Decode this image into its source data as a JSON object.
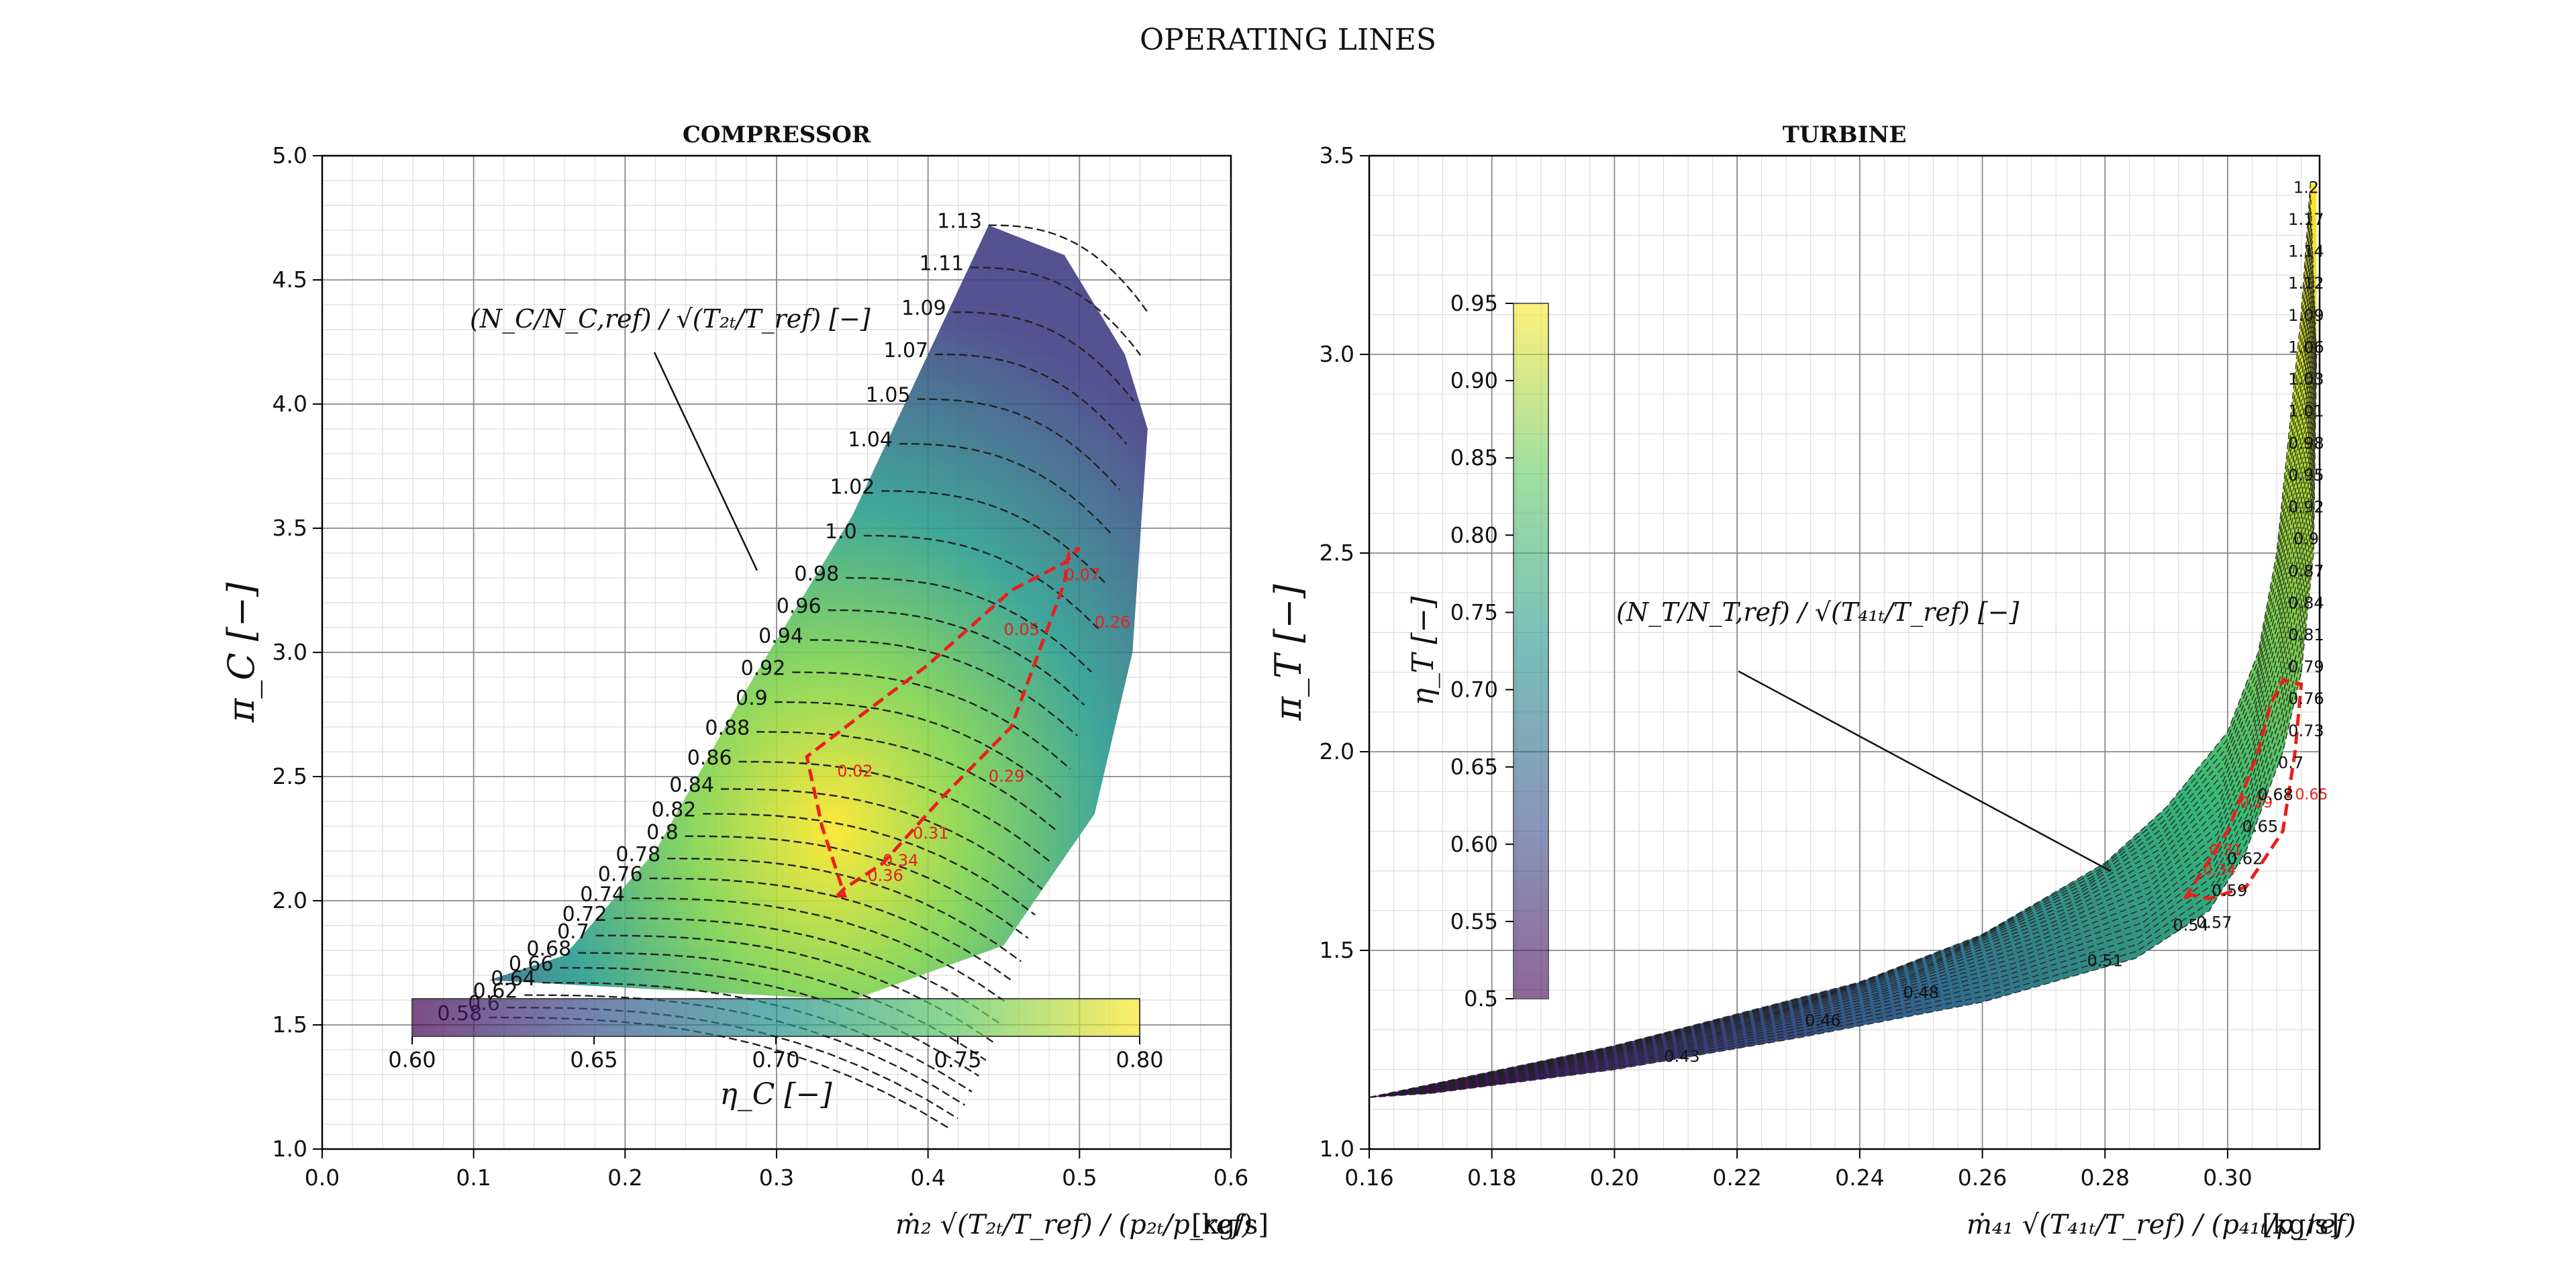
{
  "figure": {
    "title": "OPERATING LINES"
  },
  "colors": {
    "operating_line": "#e8201a",
    "speedline": "#222222",
    "grid_major": "#8a8a8a",
    "grid_minor": "#dcdcdc",
    "viridis": [
      "#440154",
      "#3b528b",
      "#21918c",
      "#5ec962",
      "#fde725"
    ]
  },
  "compressor": {
    "title": "COMPRESSOR",
    "xlabel": "ṁ₂ √(T₂ₜ/T_ref) / (p₂ₜ/p_ref)",
    "x_unit": "[kg/s]",
    "ylabel": "π_C [−]",
    "speed_annotation": "(N_C/N_C,ref) / √(T₂ₜ/T_ref) [−]",
    "colorbar_label": "η_C [−]",
    "colorbar_orientation": "horizontal",
    "colorbar_range": [
      0.6,
      0.8
    ],
    "colorbar_ticks": [
      "0.60",
      "0.65",
      "0.70",
      "0.75",
      "0.80"
    ]
  },
  "turbine": {
    "title": "TURBINE",
    "xlabel": "ṁ₄₁ √(T₄₁ₜ/T_ref) / (p₄₁ₜ/p_ref)",
    "x_unit": "[kg/s]",
    "ylabel": "π_T [−]",
    "speed_annotation": "(N_T/N_T,ref) / √(T₄₁ₜ/T_ref) [−]",
    "colorbar_label": "η_T [−]",
    "colorbar_orientation": "vertical",
    "colorbar_range": [
      0.5,
      0.95
    ],
    "colorbar_ticks": [
      "0.5",
      "0.55",
      "0.60",
      "0.65",
      "0.70",
      "0.75",
      "0.80",
      "0.85",
      "0.90",
      "0.95"
    ]
  },
  "chart_data": [
    {
      "type": "contour",
      "title": "COMPRESSOR",
      "xlim": [
        0.0,
        0.6
      ],
      "ylim": [
        1.0,
        5.0
      ],
      "xticks": [
        "0.0",
        "0.1",
        "0.2",
        "0.3",
        "0.4",
        "0.5",
        "0.6"
      ],
      "yticks": [
        "1.0",
        "1.5",
        "2.0",
        "2.5",
        "3.0",
        "3.5",
        "4.0",
        "4.5",
        "5.0"
      ],
      "grid": true,
      "map_boundary": [
        [
          0.11,
          1.68
        ],
        [
          0.16,
          1.78
        ],
        [
          0.22,
          2.2
        ],
        [
          0.28,
          2.85
        ],
        [
          0.35,
          3.55
        ],
        [
          0.44,
          4.72
        ],
        [
          0.49,
          4.6
        ],
        [
          0.53,
          4.2
        ],
        [
          0.545,
          3.9
        ],
        [
          0.535,
          3.0
        ],
        [
          0.51,
          2.35
        ],
        [
          0.45,
          1.82
        ],
        [
          0.35,
          1.6
        ],
        [
          0.2,
          1.65
        ],
        [
          0.11,
          1.68
        ]
      ],
      "speedlines": {
        "labels": [
          "1.13",
          "1.11",
          "1.09",
          "1.07",
          "1.05",
          "1.04",
          "1.02",
          "1.0",
          "0.98",
          "0.96",
          "0.94",
          "0.92",
          "0.9",
          "0.88",
          "0.86",
          "0.84",
          "0.82",
          "0.8",
          "0.78",
          "0.76",
          "0.74",
          "0.72",
          "0.7",
          "0.68",
          "0.66",
          "0.64",
          "0.62",
          "0.6",
          "0.58"
        ],
        "surge_pi": [
          4.72,
          4.55,
          4.37,
          4.2,
          4.02,
          3.84,
          3.65,
          3.47,
          3.3,
          3.17,
          3.05,
          2.92,
          2.8,
          2.68,
          2.56,
          2.45,
          2.35,
          2.26,
          2.17,
          2.09,
          2.01,
          1.93,
          1.86,
          1.79,
          1.73,
          1.67,
          1.62,
          1.57,
          1.53
        ]
      },
      "operating_line": {
        "x": [
          0.34,
          0.345,
          0.33,
          0.32,
          0.35,
          0.4,
          0.455,
          0.49,
          0.5,
          0.493,
          0.49,
          0.455,
          0.41,
          0.37,
          0.345,
          0.34
        ],
        "y": [
          2.02,
          2.02,
          2.3,
          2.58,
          2.72,
          2.95,
          3.25,
          3.36,
          3.42,
          3.4,
          3.28,
          2.7,
          2.42,
          2.15,
          2.05,
          2.02
        ],
        "labels": [
          {
            "text": "0.02",
            "x": 0.34,
            "y": 2.5
          },
          {
            "text": "0.05",
            "x": 0.45,
            "y": 3.07
          },
          {
            "text": "0.07",
            "x": 0.49,
            "y": 3.29
          },
          {
            "text": "0.26",
            "x": 0.51,
            "y": 3.1
          },
          {
            "text": "0.29",
            "x": 0.44,
            "y": 2.48
          },
          {
            "text": "0.31",
            "x": 0.39,
            "y": 2.25
          },
          {
            "text": "0.34",
            "x": 0.37,
            "y": 2.14
          },
          {
            "text": "0.36",
            "x": 0.36,
            "y": 2.08
          }
        ]
      },
      "efficiency_range": [
        0.6,
        0.8
      ]
    },
    {
      "type": "contour",
      "title": "TURBINE",
      "xlim": [
        0.16,
        0.315
      ],
      "ylim": [
        1.0,
        3.5
      ],
      "xticks": [
        "0.16",
        "0.18",
        "0.20",
        "0.22",
        "0.24",
        "0.26",
        "0.28",
        "0.30"
      ],
      "yticks": [
        "1.0",
        "1.5",
        "2.0",
        "2.5",
        "3.0",
        "3.5"
      ],
      "grid": true,
      "speedlines": {
        "right_labels": [
          "1.2",
          "1.17",
          "1.14",
          "1.12",
          "1.09",
          "1.06",
          "1.03",
          "1.01",
          "0.98",
          "0.95",
          "0.92",
          "0.9",
          "0.87",
          "0.84",
          "0.81",
          "0.79",
          "0.76",
          "0.73",
          "0.7",
          "0.68",
          "0.65",
          "0.62",
          "0.59",
          "0.57"
        ],
        "lower_labels": [
          {
            "text": "0.54",
            "x": 0.294,
            "y": 1.55
          },
          {
            "text": "0.51",
            "x": 0.28,
            "y": 1.46
          },
          {
            "text": "0.48",
            "x": 0.25,
            "y": 1.38
          },
          {
            "text": "0.46",
            "x": 0.234,
            "y": 1.31
          },
          {
            "text": "0.43",
            "x": 0.211,
            "y": 1.22
          }
        ]
      },
      "operating_line": {
        "x": [
          0.293,
          0.3,
          0.305,
          0.307,
          0.309,
          0.312,
          0.311,
          0.309,
          0.303,
          0.297,
          0.294,
          0.293
        ],
        "y": [
          1.63,
          1.8,
          2.0,
          2.12,
          2.18,
          2.17,
          2.0,
          1.8,
          1.66,
          1.63,
          1.64,
          1.63
        ],
        "labels": [
          {
            "text": "0.29",
            "x": 0.302,
            "y": 1.86
          },
          {
            "text": "0.31",
            "x": 0.297,
            "y": 1.74
          },
          {
            "text": "0.34",
            "x": 0.296,
            "y": 1.69
          },
          {
            "text": "0.65",
            "x": 0.311,
            "y": 1.88
          }
        ]
      },
      "efficiency_range": [
        0.5,
        0.95
      ]
    }
  ]
}
